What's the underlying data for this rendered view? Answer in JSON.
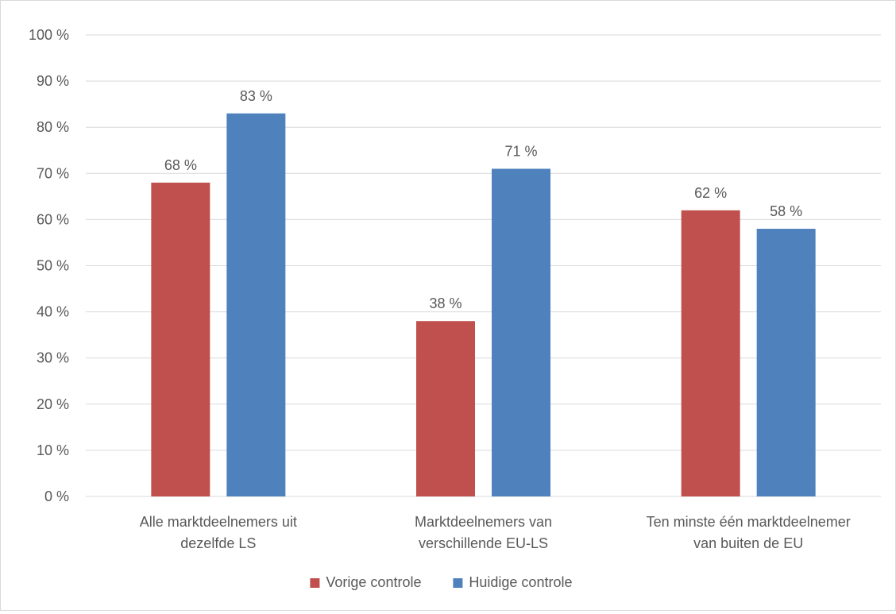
{
  "chart_data": {
    "type": "bar",
    "categories": [
      [
        "Alle marktdeelnemers uit",
        "dezelfde LS"
      ],
      [
        "Marktdeelnemers van",
        "verschillende EU-LS"
      ],
      [
        "Ten minste één marktdeelnemer",
        "van buiten de EU"
      ]
    ],
    "series": [
      {
        "name": "Vorige controle",
        "color": "#c0504d",
        "values": [
          68,
          38,
          62
        ],
        "labels": [
          "68 %",
          "38 %",
          "62 %"
        ]
      },
      {
        "name": "Huidige controle",
        "color": "#4f81bd",
        "values": [
          83,
          71,
          58
        ],
        "labels": [
          "83 %",
          "71 %",
          "58 %"
        ]
      }
    ],
    "ylim": [
      0,
      100
    ],
    "yticks": [
      0,
      10,
      20,
      30,
      40,
      50,
      60,
      70,
      80,
      90,
      100
    ],
    "ytick_labels": [
      "0 %",
      "10 %",
      "20 %",
      "30 %",
      "40 %",
      "50 %",
      "60 %",
      "70 %",
      "80 %",
      "90 %",
      "100 %"
    ],
    "grid": true,
    "legend": "bottom",
    "title": "",
    "xlabel": "",
    "ylabel": ""
  }
}
